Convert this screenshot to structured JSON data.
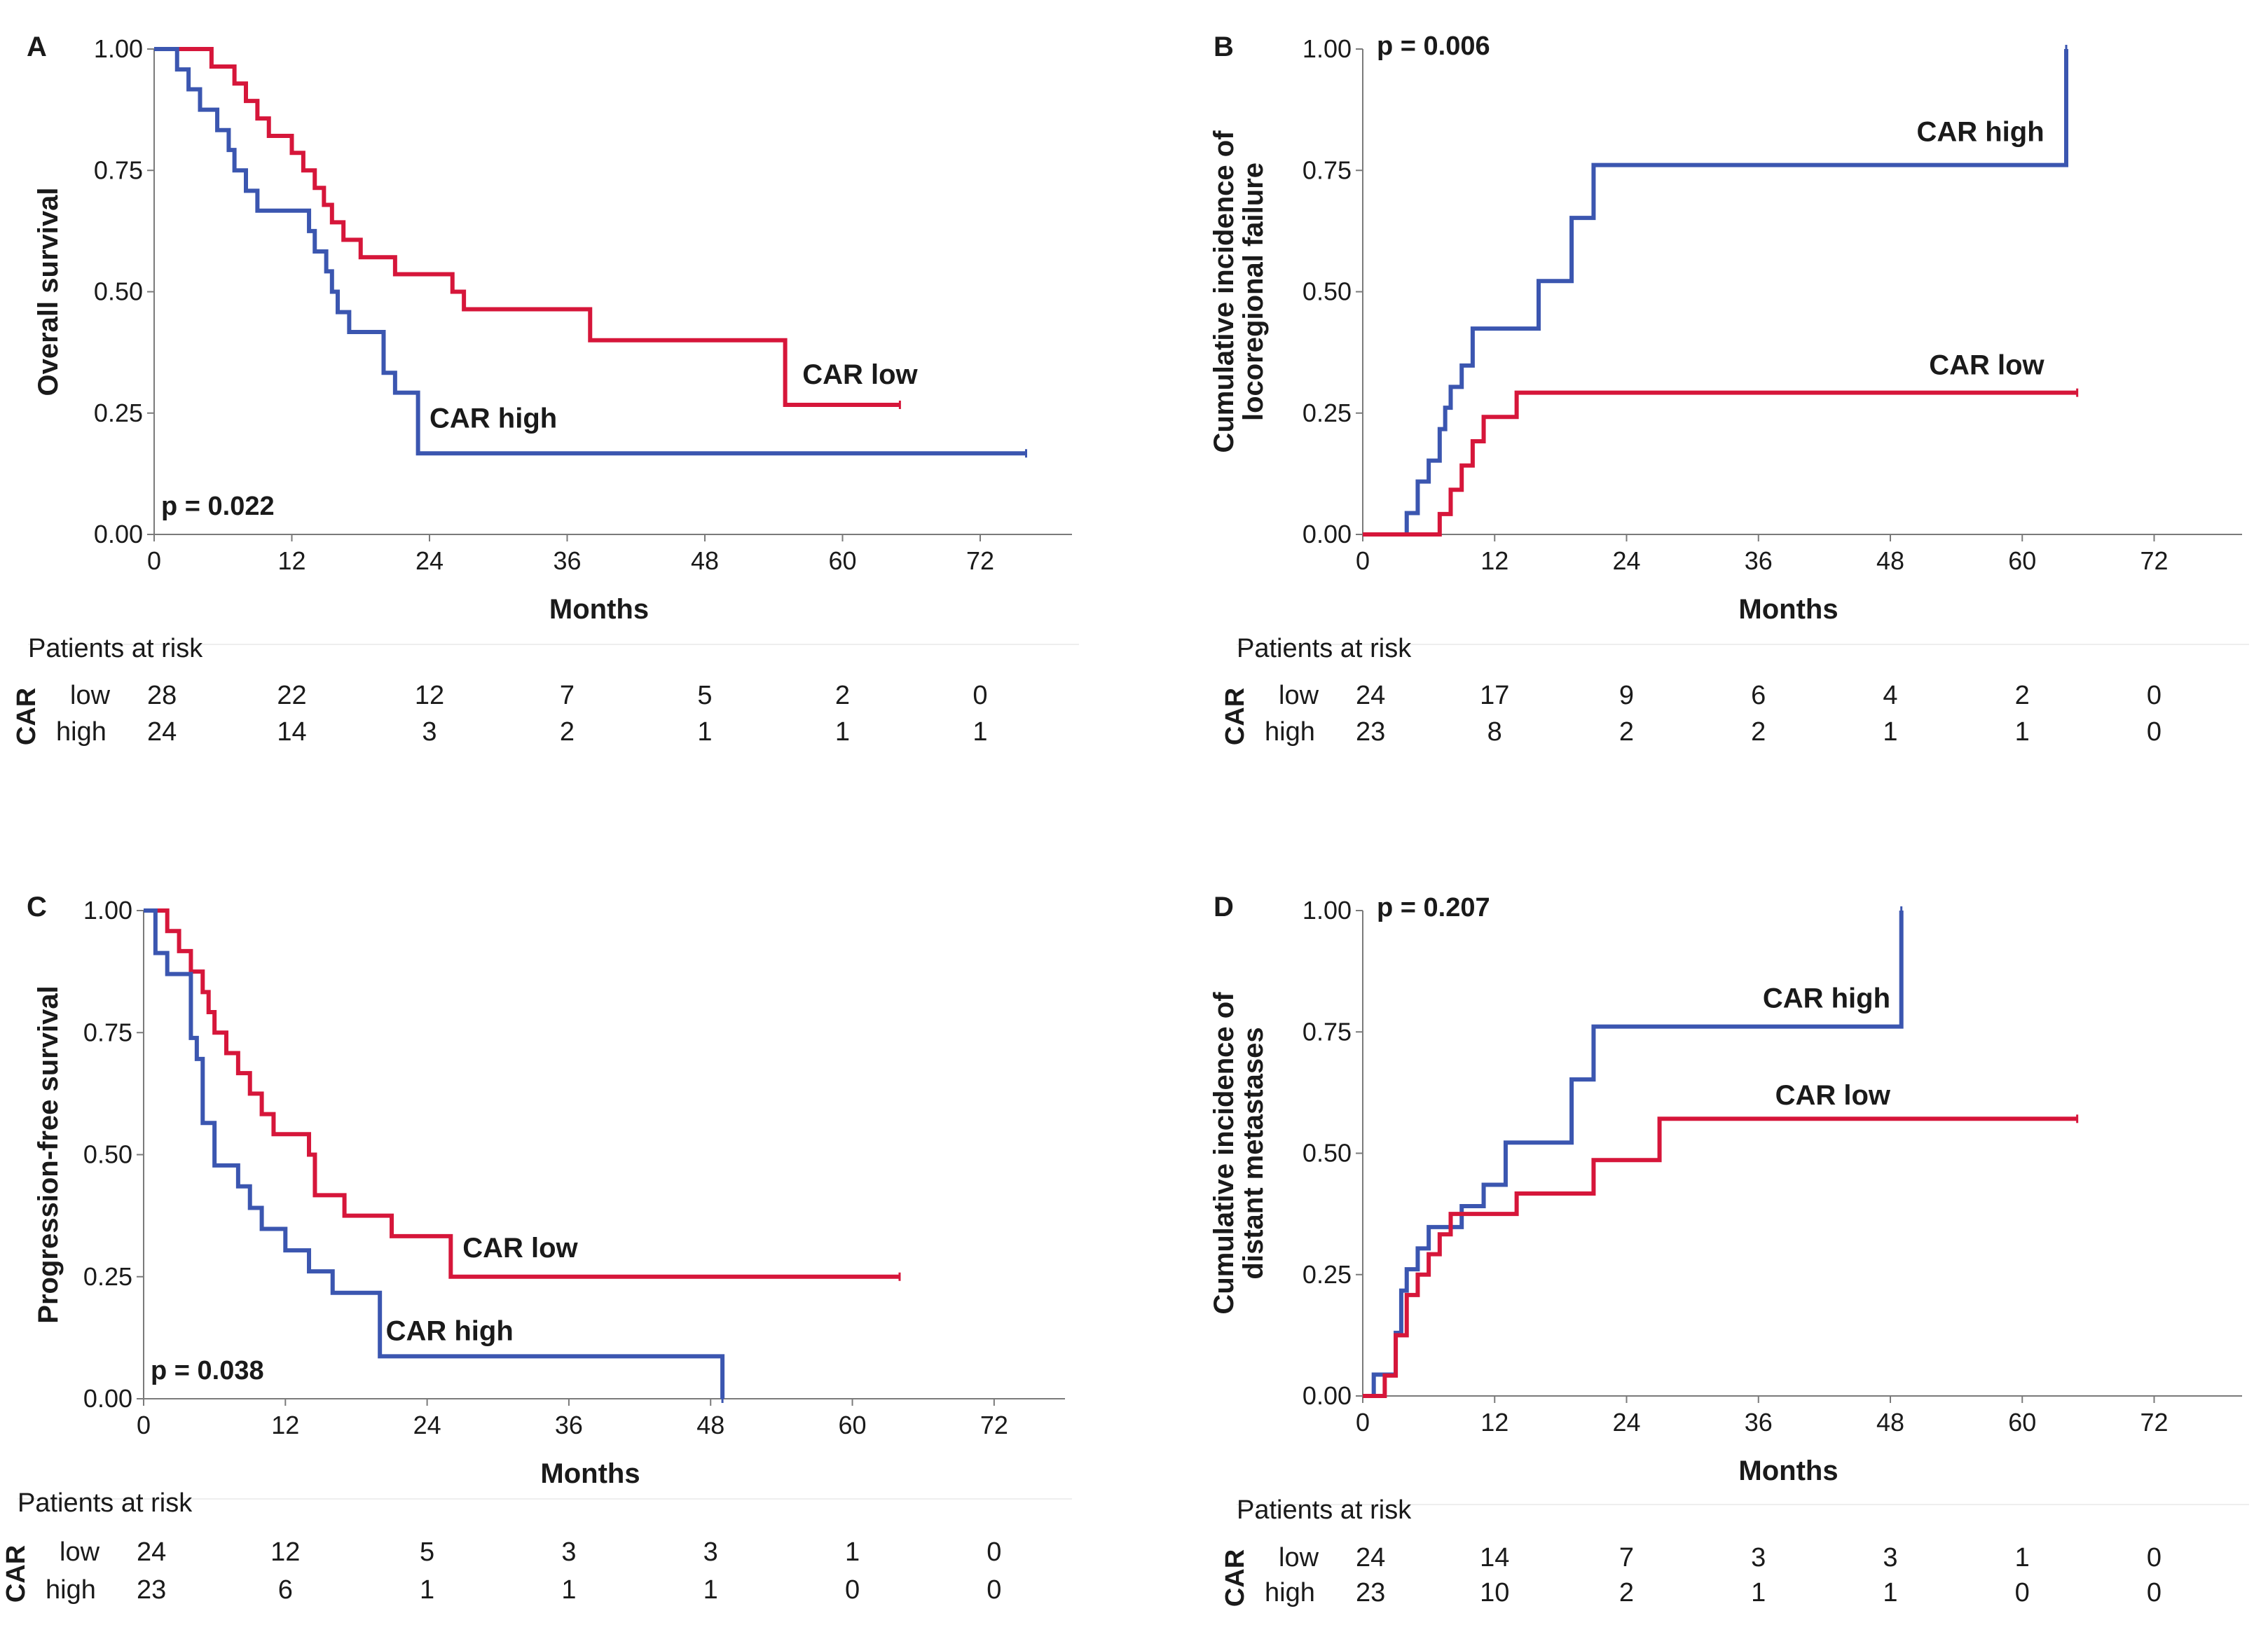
{
  "figure": {
    "x_axis_label": "Months",
    "risk_table_title": "Patients at risk",
    "risk_table_group_var": "CAR",
    "group_labels": [
      "low",
      "high"
    ],
    "colors": {
      "car_low": "#d6163a",
      "car_high": "#3b56b0"
    }
  },
  "chart_data": [
    {
      "panel": "A",
      "type": "line",
      "mode": "survival",
      "ylabel_lines": [
        "Overall survival"
      ],
      "p_value": "p = 0.022",
      "p_position": "bottom-left",
      "xlim": [
        0,
        80
      ],
      "ylim": [
        0,
        1
      ],
      "xticks": [
        "0",
        "12",
        "24",
        "36",
        "48",
        "60",
        "72"
      ],
      "yticks": [
        "0.00",
        "0.25",
        "0.50",
        "0.75",
        "1.00"
      ],
      "series": [
        {
          "name": "CAR low",
          "color": "#d6163a",
          "x": [
            0,
            5,
            7,
            8,
            9,
            10,
            12,
            13,
            14,
            14.8,
            15.5,
            16.5,
            18,
            21,
            26,
            27,
            38,
            55,
            65
          ],
          "y": [
            1,
            0.964,
            0.929,
            0.893,
            0.857,
            0.821,
            0.786,
            0.75,
            0.714,
            0.679,
            0.643,
            0.607,
            0.571,
            0.536,
            0.5,
            0.464,
            0.4,
            0.267,
            0.267
          ]
        },
        {
          "name": "CAR high",
          "color": "#3b56b0",
          "x": [
            0,
            2,
            3,
            4,
            5.5,
            6.5,
            7,
            8,
            9,
            13.5,
            14,
            15,
            15.5,
            16,
            17,
            20,
            21,
            23,
            76
          ],
          "y": [
            1,
            0.958,
            0.917,
            0.875,
            0.833,
            0.792,
            0.75,
            0.708,
            0.667,
            0.625,
            0.583,
            0.542,
            0.5,
            0.458,
            0.417,
            0.333,
            0.292,
            0.167,
            0.167
          ]
        }
      ],
      "curve_labels": [
        {
          "text": "CAR low",
          "at_x": 56.5,
          "at_y": 0.31
        },
        {
          "text": "CAR high",
          "at_x": 24,
          "at_y": 0.22
        }
      ],
      "risk_table": {
        "timepoints": [
          "0",
          "12",
          "24",
          "36",
          "48",
          "60",
          "72"
        ],
        "low": [
          "28",
          "22",
          "12",
          "7",
          "5",
          "2",
          "0"
        ],
        "high": [
          "24",
          "14",
          "3",
          "2",
          "1",
          "1",
          "1"
        ]
      }
    },
    {
      "panel": "B",
      "type": "line",
      "mode": "incidence",
      "ylabel_lines": [
        "Cumulative incidence of",
        "locoregional failure"
      ],
      "p_value": "p = 0.006",
      "p_position": "top-left",
      "xlim": [
        0,
        80
      ],
      "ylim": [
        0,
        1
      ],
      "xticks": [
        "0",
        "12",
        "24",
        "36",
        "48",
        "60",
        "72"
      ],
      "yticks": [
        "0.00",
        "0.25",
        "0.50",
        "0.75",
        "1.00"
      ],
      "series": [
        {
          "name": "CAR high",
          "color": "#3b56b0",
          "x": [
            0,
            4,
            5,
            6,
            7,
            7.5,
            8,
            9,
            10,
            16,
            19,
            21,
            64,
            64
          ],
          "y": [
            0,
            0.044,
            0.109,
            0.152,
            0.217,
            0.261,
            0.304,
            0.348,
            0.424,
            0.522,
            0.652,
            0.761,
            0.761,
            1.0
          ]
        },
        {
          "name": "CAR low",
          "color": "#d6163a",
          "x": [
            0,
            7,
            8,
            9,
            10,
            11,
            14,
            17,
            65
          ],
          "y": [
            0,
            0.042,
            0.092,
            0.142,
            0.192,
            0.242,
            0.292,
            0.292,
            0.292
          ]
        }
      ],
      "curve_labels": [
        {
          "text": "CAR high",
          "at_x": 62,
          "at_y": 0.81,
          "anchor": "end"
        },
        {
          "text": "CAR low",
          "at_x": 62,
          "at_y": 0.33,
          "anchor": "end"
        }
      ],
      "risk_table": {
        "timepoints": [
          "0",
          "12",
          "24",
          "36",
          "48",
          "60",
          "72"
        ],
        "low": [
          "24",
          "17",
          "9",
          "6",
          "4",
          "2",
          "0"
        ],
        "high": [
          "23",
          "8",
          "2",
          "2",
          "1",
          "1",
          "0"
        ]
      }
    },
    {
      "panel": "C",
      "type": "line",
      "mode": "survival",
      "ylabel_lines": [
        "Progression-free survival"
      ],
      "p_value": "p = 0.038",
      "p_position": "bottom-left",
      "xlim": [
        0,
        78
      ],
      "ylim": [
        0,
        1
      ],
      "xticks": [
        "0",
        "12",
        "24",
        "36",
        "48",
        "60",
        "72"
      ],
      "yticks": [
        "0.00",
        "0.25",
        "0.50",
        "0.75",
        "1.00"
      ],
      "series": [
        {
          "name": "CAR low",
          "color": "#d6163a",
          "x": [
            0,
            2,
            3,
            4,
            5,
            5.5,
            6,
            7,
            8,
            9,
            10,
            11,
            14,
            14.5,
            17,
            21,
            26,
            64
          ],
          "y": [
            1,
            0.958,
            0.917,
            0.875,
            0.833,
            0.792,
            0.75,
            0.708,
            0.667,
            0.625,
            0.583,
            0.542,
            0.5,
            0.417,
            0.375,
            0.333,
            0.25,
            0.25
          ]
        },
        {
          "name": "CAR high",
          "color": "#3b56b0",
          "x": [
            0,
            1,
            2,
            4,
            4.5,
            5,
            6,
            8,
            9,
            10,
            12,
            14,
            16,
            20,
            49,
            49
          ],
          "y": [
            1,
            0.913,
            0.87,
            0.739,
            0.696,
            0.565,
            0.478,
            0.435,
            0.391,
            0.348,
            0.304,
            0.261,
            0.217,
            0.087,
            0.087,
            0
          ]
        }
      ],
      "curve_labels": [
        {
          "text": "CAR low",
          "at_x": 27,
          "at_y": 0.29
        },
        {
          "text": "CAR high",
          "at_x": 20.5,
          "at_y": 0.12
        }
      ],
      "risk_table": {
        "timepoints": [
          "0",
          "12",
          "24",
          "36",
          "48",
          "60",
          "72"
        ],
        "low": [
          "24",
          "12",
          "5",
          "3",
          "3",
          "1",
          "0"
        ],
        "high": [
          "23",
          "6",
          "1",
          "1",
          "1",
          "0",
          "0"
        ]
      }
    },
    {
      "panel": "D",
      "type": "line",
      "mode": "incidence",
      "ylabel_lines": [
        "Cumulative incidence of",
        "distant metastases"
      ],
      "p_value": "p = 0.207",
      "p_position": "top-left",
      "xlim": [
        0,
        80
      ],
      "ylim": [
        0,
        1
      ],
      "xticks": [
        "0",
        "12",
        "24",
        "36",
        "48",
        "60",
        "72"
      ],
      "yticks": [
        "0.00",
        "0.25",
        "0.50",
        "0.75",
        "1.00"
      ],
      "series": [
        {
          "name": "CAR high",
          "color": "#3b56b0",
          "x": [
            0,
            1,
            3,
            3.5,
            4,
            5,
            6,
            9,
            11,
            13,
            19,
            21,
            49,
            49
          ],
          "y": [
            0,
            0.044,
            0.13,
            0.217,
            0.261,
            0.304,
            0.348,
            0.391,
            0.435,
            0.522,
            0.652,
            0.761,
            0.761,
            1.0
          ]
        },
        {
          "name": "CAR low",
          "color": "#d6163a",
          "x": [
            0,
            2,
            3,
            4,
            5,
            6,
            7,
            8,
            10,
            14,
            21,
            27,
            65
          ],
          "y": [
            0,
            0.042,
            0.125,
            0.208,
            0.25,
            0.292,
            0.333,
            0.375,
            0.375,
            0.417,
            0.486,
            0.571,
            0.571
          ]
        }
      ],
      "curve_labels": [
        {
          "text": "CAR high",
          "at_x": 48,
          "at_y": 0.8,
          "anchor": "end"
        },
        {
          "text": "CAR low",
          "at_x": 48,
          "at_y": 0.6,
          "anchor": "end"
        }
      ],
      "risk_table": {
        "timepoints": [
          "0",
          "12",
          "24",
          "36",
          "48",
          "60",
          "72"
        ],
        "low": [
          "24",
          "14",
          "7",
          "3",
          "3",
          "1",
          "0"
        ],
        "high": [
          "23",
          "10",
          "2",
          "1",
          "1",
          "0",
          "0"
        ]
      }
    }
  ]
}
